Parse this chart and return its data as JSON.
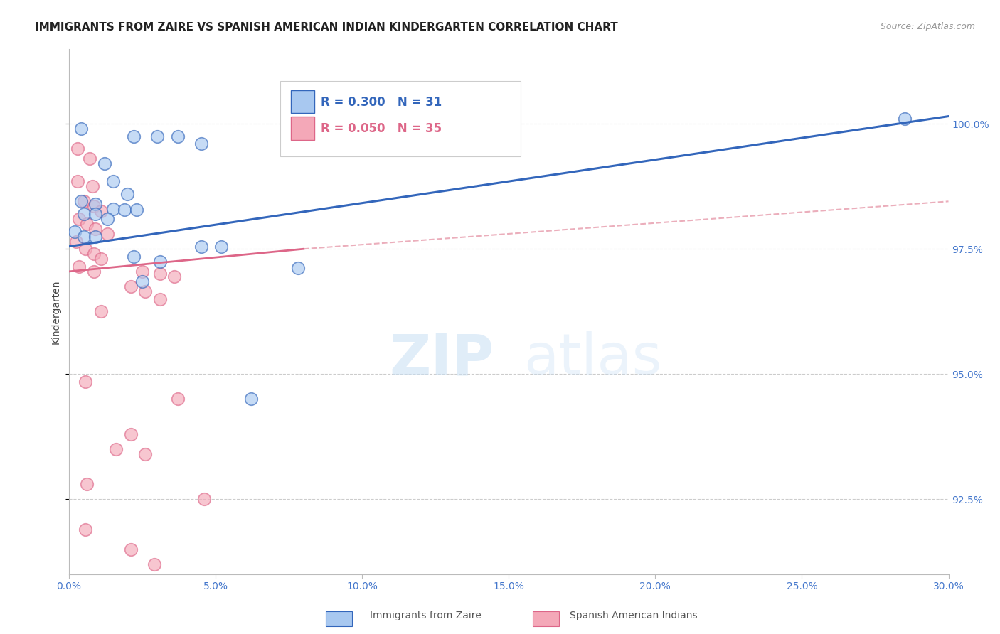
{
  "title": "IMMIGRANTS FROM ZAIRE VS SPANISH AMERICAN INDIAN KINDERGARTEN CORRELATION CHART",
  "source": "Source: ZipAtlas.com",
  "ylabel": "Kindergarten",
  "x_tick_labels": [
    "0.0%",
    "5.0%",
    "10.0%",
    "15.0%",
    "20.0%",
    "25.0%",
    "30.0%"
  ],
  "x_tick_vals": [
    0.0,
    5.0,
    10.0,
    15.0,
    20.0,
    25.0,
    30.0
  ],
  "y_tick_labels": [
    "92.5%",
    "95.0%",
    "97.5%",
    "100.0%"
  ],
  "y_tick_vals": [
    92.5,
    95.0,
    97.5,
    100.0
  ],
  "xlim": [
    0.0,
    30.0
  ],
  "ylim": [
    91.0,
    101.5
  ],
  "blue_label": "Immigrants from Zaire",
  "pink_label": "Spanish American Indians",
  "R_blue": 0.3,
  "N_blue": 31,
  "R_pink": 0.05,
  "N_pink": 35,
  "blue_color": "#A8C8F0",
  "pink_color": "#F4A8B8",
  "blue_line_color": "#3366BB",
  "pink_line_color": "#DD6688",
  "dashed_line_color": "#E8A0B0",
  "blue_line": [
    [
      0.0,
      97.55
    ],
    [
      30.0,
      100.15
    ]
  ],
  "pink_solid_line": [
    [
      0.0,
      97.05
    ],
    [
      8.0,
      97.5
    ]
  ],
  "pink_dashed_line": [
    [
      8.0,
      97.5
    ],
    [
      30.0,
      98.45
    ]
  ],
  "blue_dots": [
    [
      0.4,
      99.9
    ],
    [
      2.2,
      99.75
    ],
    [
      3.0,
      99.75
    ],
    [
      3.7,
      99.75
    ],
    [
      4.5,
      99.6
    ],
    [
      1.2,
      99.2
    ],
    [
      1.5,
      98.85
    ],
    [
      2.0,
      98.6
    ],
    [
      0.4,
      98.45
    ],
    [
      0.9,
      98.4
    ],
    [
      1.5,
      98.3
    ],
    [
      1.9,
      98.28
    ],
    [
      2.3,
      98.28
    ],
    [
      0.5,
      98.2
    ],
    [
      0.9,
      98.2
    ],
    [
      1.3,
      98.1
    ],
    [
      0.2,
      97.85
    ],
    [
      0.5,
      97.75
    ],
    [
      0.9,
      97.75
    ],
    [
      4.5,
      97.55
    ],
    [
      5.2,
      97.55
    ],
    [
      2.2,
      97.35
    ],
    [
      3.1,
      97.25
    ],
    [
      7.8,
      97.12
    ],
    [
      2.5,
      96.85
    ],
    [
      6.2,
      94.5
    ],
    [
      28.5,
      100.1
    ]
  ],
  "pink_dots": [
    [
      0.3,
      99.5
    ],
    [
      0.7,
      99.3
    ],
    [
      0.3,
      98.85
    ],
    [
      0.8,
      98.75
    ],
    [
      0.5,
      98.45
    ],
    [
      0.85,
      98.35
    ],
    [
      1.1,
      98.25
    ],
    [
      0.35,
      98.1
    ],
    [
      0.6,
      98.0
    ],
    [
      0.9,
      97.9
    ],
    [
      1.3,
      97.8
    ],
    [
      0.25,
      97.65
    ],
    [
      0.55,
      97.5
    ],
    [
      0.85,
      97.4
    ],
    [
      1.1,
      97.3
    ],
    [
      0.35,
      97.15
    ],
    [
      0.85,
      97.05
    ],
    [
      2.5,
      97.05
    ],
    [
      3.1,
      97.0
    ],
    [
      3.6,
      96.95
    ],
    [
      2.1,
      96.75
    ],
    [
      2.6,
      96.65
    ],
    [
      3.1,
      96.5
    ],
    [
      1.1,
      96.25
    ],
    [
      0.55,
      94.85
    ],
    [
      3.7,
      94.5
    ],
    [
      2.1,
      93.8
    ],
    [
      1.6,
      93.5
    ],
    [
      2.6,
      93.4
    ],
    [
      0.6,
      92.8
    ],
    [
      0.55,
      91.9
    ],
    [
      4.6,
      92.5
    ],
    [
      2.1,
      91.5
    ],
    [
      2.9,
      91.2
    ]
  ],
  "background_color": "#FFFFFF",
  "grid_color": "#CCCCCC",
  "title_fontsize": 11,
  "axis_label_fontsize": 10,
  "tick_fontsize": 10,
  "legend_fontsize": 12,
  "source_fontsize": 9
}
